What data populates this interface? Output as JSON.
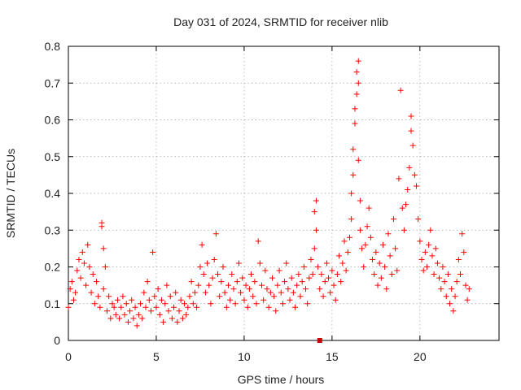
{
  "colors": {
    "series": "#ff0000",
    "marker": "#cc0000"
  },
  "chart_data": {
    "type": "scatter",
    "title": "Day 031 of 2024, SRMTID for receiver nlib",
    "xlabel": "GPS time / hours",
    "ylabel": "SRMTID / TECUs",
    "xlim": [
      0,
      24.5
    ],
    "ylim": [
      0,
      0.8
    ],
    "xticks": [
      0,
      5,
      10,
      15,
      20
    ],
    "xtick_labels": [
      "0",
      "5",
      "10",
      "15",
      "20"
    ],
    "yticks": [
      0,
      0.1,
      0.2,
      0.3,
      0.4,
      0.5,
      0.6,
      0.7,
      0.8
    ],
    "ytick_labels": [
      "0",
      "0.1",
      "0.2",
      "0.3",
      "0.4",
      "0.5",
      "0.6",
      "0.7",
      "0.8"
    ],
    "grid": true,
    "marker": "plus",
    "series": [
      {
        "name": "SRMTID",
        "points": [
          [
            0.0,
            0.09
          ],
          [
            0.1,
            0.14
          ],
          [
            0.2,
            0.16
          ],
          [
            0.3,
            0.11
          ],
          [
            0.4,
            0.13
          ],
          [
            0.5,
            0.19
          ],
          [
            0.6,
            0.22
          ],
          [
            0.7,
            0.17
          ],
          [
            0.8,
            0.24
          ],
          [
            0.9,
            0.21
          ],
          [
            1.0,
            0.15
          ],
          [
            1.1,
            0.26
          ],
          [
            1.2,
            0.2
          ],
          [
            1.3,
            0.13
          ],
          [
            1.4,
            0.18
          ],
          [
            1.5,
            0.1
          ],
          [
            1.6,
            0.16
          ],
          [
            1.7,
            0.12
          ],
          [
            1.8,
            0.09
          ],
          [
            1.9,
            0.32
          ],
          [
            1.9,
            0.31
          ],
          [
            2.0,
            0.25
          ],
          [
            2.0,
            0.14
          ],
          [
            2.1,
            0.2
          ],
          [
            2.2,
            0.08
          ],
          [
            2.3,
            0.12
          ],
          [
            2.4,
            0.06
          ],
          [
            2.5,
            0.1
          ],
          [
            2.6,
            0.09
          ],
          [
            2.7,
            0.07
          ],
          [
            2.8,
            0.11
          ],
          [
            2.9,
            0.06
          ],
          [
            3.0,
            0.09
          ],
          [
            3.1,
            0.12
          ],
          [
            3.2,
            0.07
          ],
          [
            3.3,
            0.1
          ],
          [
            3.4,
            0.05
          ],
          [
            3.5,
            0.08
          ],
          [
            3.6,
            0.11
          ],
          [
            3.7,
            0.06
          ],
          [
            3.8,
            0.09
          ],
          [
            3.9,
            0.04
          ],
          [
            4.0,
            0.07
          ],
          [
            4.1,
            0.1
          ],
          [
            4.2,
            0.06
          ],
          [
            4.3,
            0.13
          ],
          [
            4.4,
            0.09
          ],
          [
            4.5,
            0.16
          ],
          [
            4.6,
            0.11
          ],
          [
            4.7,
            0.08
          ],
          [
            4.8,
            0.24
          ],
          [
            4.9,
            0.12
          ],
          [
            5.0,
            0.09
          ],
          [
            5.1,
            0.14
          ],
          [
            5.2,
            0.07
          ],
          [
            5.3,
            0.11
          ],
          [
            5.4,
            0.05
          ],
          [
            5.5,
            0.1
          ],
          [
            5.6,
            0.15
          ],
          [
            5.7,
            0.08
          ],
          [
            5.8,
            0.12
          ],
          [
            5.9,
            0.06
          ],
          [
            6.0,
            0.09
          ],
          [
            6.1,
            0.13
          ],
          [
            6.2,
            0.05
          ],
          [
            6.3,
            0.08
          ],
          [
            6.4,
            0.11
          ],
          [
            6.5,
            0.06
          ],
          [
            6.6,
            0.1
          ],
          [
            6.7,
            0.07
          ],
          [
            6.8,
            0.09
          ],
          [
            6.9,
            0.12
          ],
          [
            7.0,
            0.16
          ],
          [
            7.1,
            0.1
          ],
          [
            7.2,
            0.13
          ],
          [
            7.3,
            0.09
          ],
          [
            7.4,
            0.15
          ],
          [
            7.5,
            0.2
          ],
          [
            7.6,
            0.26
          ],
          [
            7.7,
            0.18
          ],
          [
            7.8,
            0.13
          ],
          [
            7.9,
            0.21
          ],
          [
            8.0,
            0.15
          ],
          [
            8.1,
            0.1
          ],
          [
            8.2,
            0.17
          ],
          [
            8.3,
            0.22
          ],
          [
            8.4,
            0.29
          ],
          [
            8.5,
            0.18
          ],
          [
            8.6,
            0.12
          ],
          [
            8.7,
            0.16
          ],
          [
            8.8,
            0.2
          ],
          [
            8.9,
            0.13
          ],
          [
            9.0,
            0.09
          ],
          [
            9.1,
            0.15
          ],
          [
            9.2,
            0.11
          ],
          [
            9.3,
            0.18
          ],
          [
            9.4,
            0.14
          ],
          [
            9.5,
            0.1
          ],
          [
            9.6,
            0.16
          ],
          [
            9.7,
            0.21
          ],
          [
            9.8,
            0.13
          ],
          [
            9.9,
            0.17
          ],
          [
            10.0,
            0.11
          ],
          [
            10.1,
            0.15
          ],
          [
            10.2,
            0.09
          ],
          [
            10.3,
            0.14
          ],
          [
            10.4,
            0.18
          ],
          [
            10.5,
            0.12
          ],
          [
            10.6,
            0.16
          ],
          [
            10.7,
            0.1
          ],
          [
            10.8,
            0.27
          ],
          [
            10.9,
            0.21
          ],
          [
            11.0,
            0.15
          ],
          [
            11.1,
            0.11
          ],
          [
            11.2,
            0.19
          ],
          [
            11.3,
            0.14
          ],
          [
            11.4,
            0.09
          ],
          [
            11.5,
            0.13
          ],
          [
            11.6,
            0.17
          ],
          [
            11.7,
            0.12
          ],
          [
            11.8,
            0.08
          ],
          [
            11.9,
            0.15
          ],
          [
            12.0,
            0.19
          ],
          [
            12.1,
            0.13
          ],
          [
            12.2,
            0.1
          ],
          [
            12.3,
            0.16
          ],
          [
            12.4,
            0.21
          ],
          [
            12.5,
            0.14
          ],
          [
            12.6,
            0.11
          ],
          [
            12.7,
            0.17
          ],
          [
            12.8,
            0.13
          ],
          [
            12.9,
            0.09
          ],
          [
            13.0,
            0.15
          ],
          [
            13.1,
            0.18
          ],
          [
            13.2,
            0.12
          ],
          [
            13.3,
            0.16
          ],
          [
            13.4,
            0.2
          ],
          [
            13.5,
            0.14
          ],
          [
            13.6,
            0.1
          ],
          [
            13.7,
            0.17
          ],
          [
            13.8,
            0.22
          ],
          [
            13.9,
            0.18
          ],
          [
            14.0,
            0.25
          ],
          [
            14.0,
            0.35
          ],
          [
            14.1,
            0.3
          ],
          [
            14.1,
            0.38
          ],
          [
            14.2,
            0.2
          ],
          [
            14.3,
            0.14
          ],
          [
            14.4,
            0.18
          ],
          [
            14.5,
            0.12
          ],
          [
            14.6,
            0.16
          ],
          [
            14.7,
            0.21
          ],
          [
            14.8,
            0.17
          ],
          [
            14.9,
            0.13
          ],
          [
            15.0,
            0.19
          ],
          [
            15.1,
            0.15
          ],
          [
            15.2,
            0.11
          ],
          [
            15.3,
            0.18
          ],
          [
            15.4,
            0.23
          ],
          [
            15.5,
            0.16
          ],
          [
            15.6,
            0.21
          ],
          [
            15.7,
            0.27
          ],
          [
            15.8,
            0.19
          ],
          [
            15.9,
            0.24
          ],
          [
            16.0,
            0.28
          ],
          [
            16.1,
            0.33
          ],
          [
            16.1,
            0.4
          ],
          [
            16.2,
            0.45
          ],
          [
            16.2,
            0.52
          ],
          [
            16.3,
            0.59
          ],
          [
            16.3,
            0.63
          ],
          [
            16.4,
            0.67
          ],
          [
            16.4,
            0.73
          ],
          [
            16.5,
            0.76
          ],
          [
            16.5,
            0.7
          ],
          [
            16.5,
            0.49
          ],
          [
            16.6,
            0.38
          ],
          [
            16.6,
            0.3
          ],
          [
            16.7,
            0.25
          ],
          [
            16.8,
            0.2
          ],
          [
            16.9,
            0.26
          ],
          [
            17.0,
            0.31
          ],
          [
            17.1,
            0.36
          ],
          [
            17.2,
            0.28
          ],
          [
            17.3,
            0.22
          ],
          [
            17.4,
            0.18
          ],
          [
            17.5,
            0.24
          ],
          [
            17.6,
            0.15
          ],
          [
            17.7,
            0.21
          ],
          [
            17.8,
            0.17
          ],
          [
            17.9,
            0.26
          ],
          [
            18.0,
            0.2
          ],
          [
            18.1,
            0.14
          ],
          [
            18.2,
            0.29
          ],
          [
            18.3,
            0.23
          ],
          [
            18.4,
            0.18
          ],
          [
            18.5,
            0.33
          ],
          [
            18.6,
            0.25
          ],
          [
            18.7,
            0.19
          ],
          [
            18.8,
            0.44
          ],
          [
            18.9,
            0.68
          ],
          [
            19.0,
            0.36
          ],
          [
            19.1,
            0.3
          ],
          [
            19.2,
            0.37
          ],
          [
            19.3,
            0.41
          ],
          [
            19.4,
            0.47
          ],
          [
            19.5,
            0.57
          ],
          [
            19.5,
            0.61
          ],
          [
            19.6,
            0.53
          ],
          [
            19.7,
            0.45
          ],
          [
            19.8,
            0.42
          ],
          [
            19.9,
            0.33
          ],
          [
            20.0,
            0.27
          ],
          [
            20.1,
            0.22
          ],
          [
            20.2,
            0.19
          ],
          [
            20.3,
            0.24
          ],
          [
            20.4,
            0.2
          ],
          [
            20.5,
            0.26
          ],
          [
            20.6,
            0.3
          ],
          [
            20.7,
            0.23
          ],
          [
            20.8,
            0.18
          ],
          [
            20.9,
            0.25
          ],
          [
            21.0,
            0.21
          ],
          [
            21.1,
            0.17
          ],
          [
            21.2,
            0.14
          ],
          [
            21.3,
            0.2
          ],
          [
            21.4,
            0.16
          ],
          [
            21.5,
            0.12
          ],
          [
            21.6,
            0.18
          ],
          [
            21.7,
            0.1
          ],
          [
            21.8,
            0.14
          ],
          [
            21.9,
            0.08
          ],
          [
            22.0,
            0.12
          ],
          [
            22.1,
            0.16
          ],
          [
            22.2,
            0.22
          ],
          [
            22.3,
            0.18
          ],
          [
            22.4,
            0.29
          ],
          [
            22.5,
            0.24
          ],
          [
            22.6,
            0.15
          ],
          [
            22.7,
            0.11
          ],
          [
            22.8,
            0.14
          ]
        ]
      }
    ],
    "annotation": {
      "type": "square-marker",
      "x": 14.3,
      "y": 0.0
    }
  }
}
